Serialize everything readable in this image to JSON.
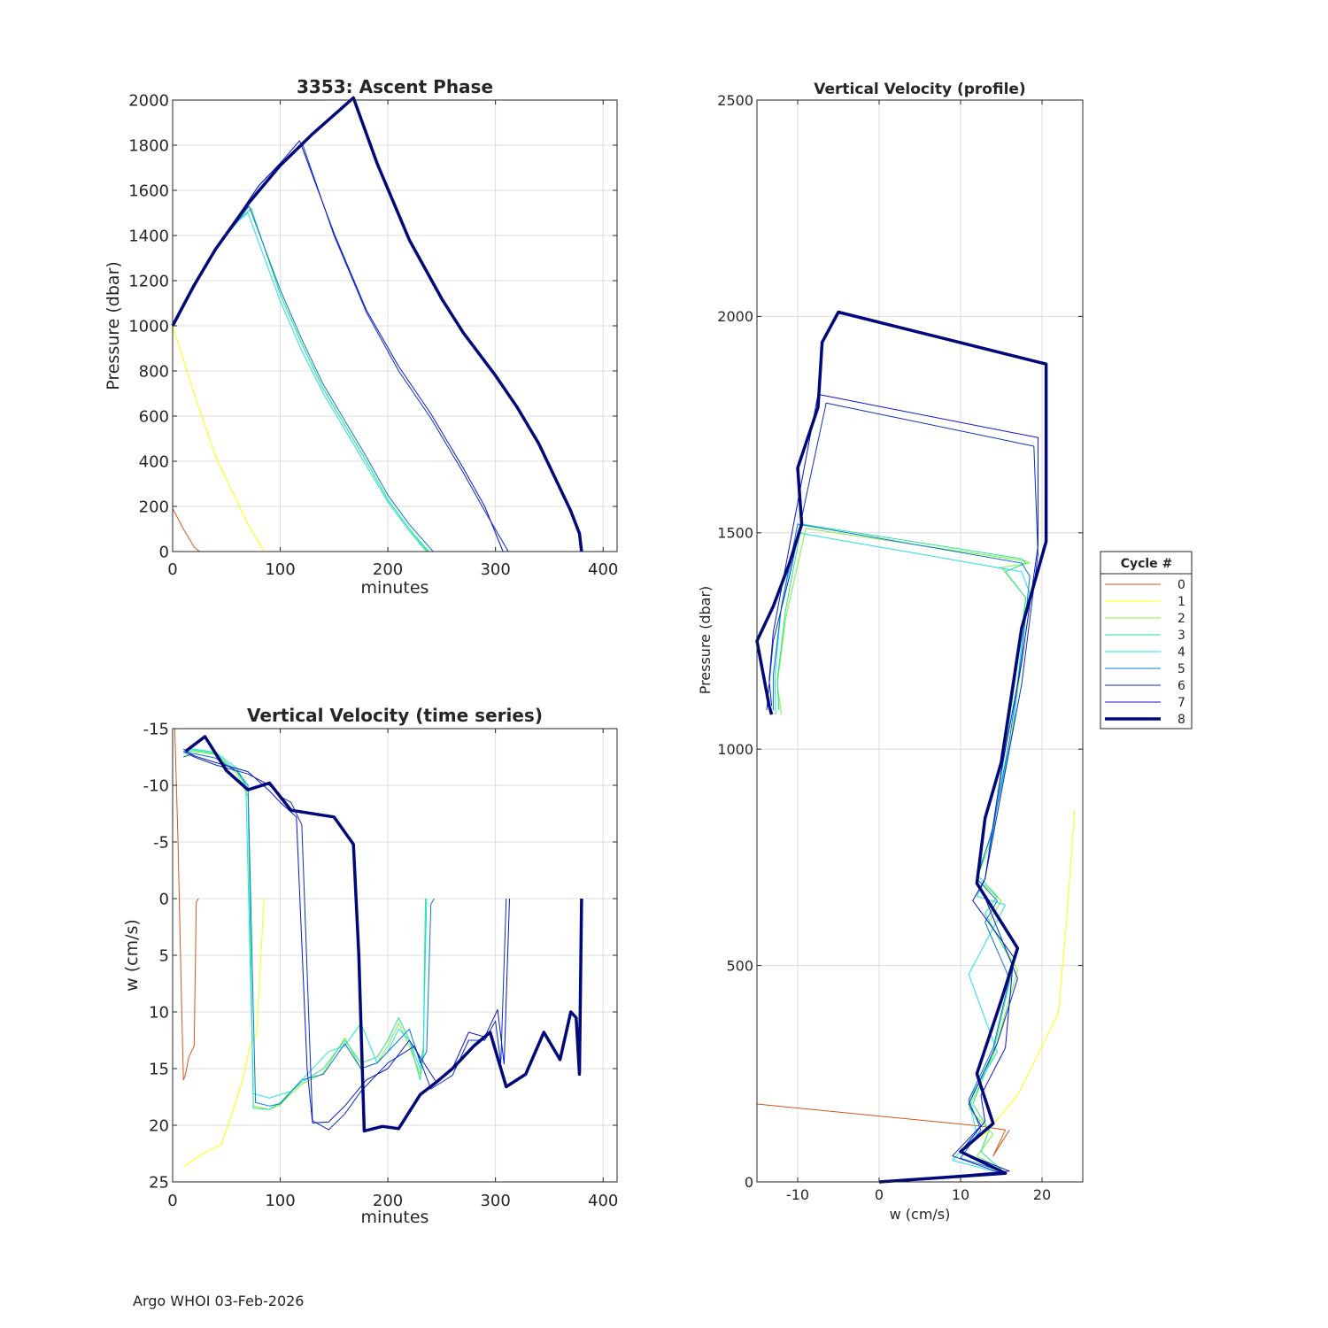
{
  "footer": "Argo WHOI 03-Feb-2026",
  "legend": {
    "title": "Cycle #",
    "entries": [
      "0",
      "1",
      "2",
      "3",
      "4",
      "5",
      "6",
      "7",
      "8"
    ],
    "colors": [
      "#d95319",
      "#ffff00",
      "#7cf03c",
      "#21e68c",
      "#1ee1e1",
      "#0b74d6",
      "#0b30b8",
      "#0a14d0",
      "#00087a"
    ]
  },
  "chart_data": [
    {
      "id": "ascent",
      "type": "line",
      "title": "3353: Ascent Phase",
      "xlabel": "minutes",
      "ylabel": "Pressure (dbar)",
      "xlim": [
        0,
        413
      ],
      "ylim": [
        2000,
        0
      ],
      "reverse_y": true,
      "grid": true,
      "xticks": [
        0,
        100,
        200,
        300,
        400
      ],
      "yticks": [
        0,
        200,
        400,
        600,
        800,
        1000,
        1200,
        1400,
        1600,
        1800,
        2000
      ],
      "series": [
        {
          "name": "0",
          "x": [
            0,
            10,
            20,
            25
          ],
          "y": [
            190,
            100,
            20,
            0
          ]
        },
        {
          "name": "1",
          "x": [
            0,
            20,
            40,
            55,
            70,
            85
          ],
          "y": [
            1000,
            700,
            420,
            270,
            120,
            0
          ]
        },
        {
          "name": "2",
          "x": [
            0,
            20,
            40,
            60,
            73,
            100,
            120,
            140,
            160,
            180,
            200,
            220,
            237
          ],
          "y": [
            1000,
            1170,
            1340,
            1460,
            1520,
            1140,
            920,
            720,
            560,
            400,
            230,
            100,
            0
          ]
        },
        {
          "name": "3",
          "x": [
            0,
            20,
            40,
            60,
            73,
            100,
            120,
            140,
            160,
            180,
            200,
            220,
            238
          ],
          "y": [
            1000,
            1170,
            1340,
            1460,
            1520,
            1140,
            920,
            720,
            560,
            400,
            230,
            100,
            0
          ]
        },
        {
          "name": "4",
          "x": [
            0,
            20,
            40,
            60,
            70,
            100,
            120,
            140,
            160,
            180,
            200,
            220,
            236
          ],
          "y": [
            1000,
            1170,
            1340,
            1460,
            1500,
            1110,
            890,
            700,
            540,
            380,
            220,
            90,
            0
          ]
        },
        {
          "name": "5",
          "x": [
            0,
            20,
            40,
            60,
            71,
            100,
            120,
            140,
            160,
            180,
            200,
            220,
            242
          ],
          "y": [
            1000,
            1170,
            1340,
            1460,
            1530,
            1160,
            940,
            740,
            580,
            420,
            250,
            120,
            0
          ]
        },
        {
          "name": "6",
          "x": [
            0,
            40,
            80,
            100,
            121,
            150,
            180,
            210,
            240,
            270,
            290,
            312
          ],
          "y": [
            1000,
            1340,
            1620,
            1720,
            1800,
            1400,
            1060,
            800,
            590,
            350,
            180,
            0
          ]
        },
        {
          "name": "7",
          "x": [
            0,
            40,
            80,
            100,
            118,
            150,
            180,
            210,
            240,
            270,
            290,
            307
          ],
          "y": [
            1000,
            1340,
            1620,
            1720,
            1820,
            1410,
            1070,
            820,
            610,
            370,
            200,
            0
          ]
        },
        {
          "name": "8",
          "x": [
            0,
            20,
            40,
            70,
            100,
            130,
            168,
            190,
            220,
            250,
            270,
            300,
            320,
            340,
            355,
            370,
            378,
            380
          ],
          "y": [
            1000,
            1180,
            1340,
            1540,
            1710,
            1850,
            2010,
            1720,
            1380,
            1120,
            970,
            780,
            640,
            480,
            330,
            180,
            80,
            0
          ]
        }
      ]
    },
    {
      "id": "timeseries",
      "type": "line",
      "title": "Vertical Velocity (time series)",
      "xlabel": "minutes",
      "ylabel": "w (cm/s)",
      "xlim": [
        0,
        413
      ],
      "ylim": [
        -15,
        25
      ],
      "grid": true,
      "xticks": [
        0,
        100,
        200,
        300,
        400
      ],
      "yticks": [
        -15,
        -10,
        -5,
        0,
        5,
        10,
        15,
        20,
        25
      ],
      "series": [
        {
          "name": "0",
          "x": [
            2,
            5,
            8,
            10,
            12,
            15,
            20,
            22,
            24
          ],
          "y": [
            -15,
            -5,
            8,
            16,
            15.5,
            14,
            13,
            0.3,
            0
          ]
        },
        {
          "name": "1",
          "x": [
            10,
            20,
            30,
            45,
            55,
            65,
            72,
            78,
            85
          ],
          "y": [
            23.7,
            23,
            22.4,
            21.7,
            19,
            16,
            13,
            12,
            0
          ]
        },
        {
          "name": "2",
          "x": [
            10,
            20,
            40,
            60,
            70,
            75,
            90,
            100,
            110,
            120,
            140,
            160,
            175,
            190,
            200,
            210,
            220,
            230,
            233,
            235
          ],
          "y": [
            -12.5,
            -13,
            -12.7,
            -11,
            -9,
            18.3,
            18.6,
            18.2,
            17.2,
            16.4,
            15.4,
            12.3,
            15,
            14.5,
            13,
            11,
            13,
            15.5,
            14,
            0
          ]
        },
        {
          "name": "3",
          "x": [
            10,
            20,
            40,
            60,
            70,
            75,
            90,
            100,
            110,
            120,
            140,
            160,
            175,
            190,
            200,
            210,
            220,
            230,
            233,
            235
          ],
          "y": [
            -12.8,
            -13.1,
            -12.8,
            -11.2,
            -9.5,
            18.5,
            18.6,
            18,
            17,
            16.2,
            15,
            12.5,
            14.5,
            14,
            12.5,
            10.5,
            12.5,
            16,
            13.5,
            0
          ]
        },
        {
          "name": "4",
          "x": [
            10,
            20,
            40,
            60,
            68,
            75,
            90,
            100,
            110,
            120,
            145,
            160,
            175,
            190,
            200,
            210,
            220,
            230,
            233,
            236
          ],
          "y": [
            -13,
            -13.2,
            -12.9,
            -11.5,
            -10,
            17.2,
            17.6,
            17.3,
            17,
            16,
            13.5,
            13,
            11,
            14.5,
            13.5,
            11.5,
            12.5,
            15,
            13,
            0
          ]
        },
        {
          "name": "5",
          "x": [
            10,
            20,
            40,
            60,
            70,
            77,
            90,
            100,
            120,
            140,
            160,
            175,
            190,
            210,
            220,
            230,
            236,
            240,
            243
          ],
          "y": [
            -12.5,
            -12.8,
            -12.4,
            -11.2,
            -10,
            18,
            18.3,
            18.1,
            16,
            15.5,
            12.8,
            15,
            14.5,
            12.5,
            11.5,
            14.5,
            13.5,
            0.5,
            0
          ]
        },
        {
          "name": "6",
          "x": [
            10,
            20,
            40,
            70,
            90,
            100,
            110,
            120,
            130,
            145,
            160,
            175,
            200,
            225,
            240,
            260,
            275,
            290,
            300,
            305,
            310
          ],
          "y": [
            -13,
            -12.5,
            -11.8,
            -11,
            -10,
            -9,
            -8.5,
            -6.5,
            19.6,
            20.4,
            19,
            17,
            14.5,
            13,
            16.8,
            15.6,
            12.5,
            12.5,
            10.8,
            14.5,
            0
          ]
        },
        {
          "name": "7",
          "x": [
            10,
            20,
            40,
            70,
            90,
            100,
            115,
            125,
            130,
            145,
            160,
            180,
            200,
            220,
            245,
            260,
            275,
            290,
            302,
            308,
            313
          ],
          "y": [
            -13.2,
            -12.6,
            -12,
            -11.2,
            -9.5,
            -8.5,
            -7.2,
            15,
            19.8,
            19.7,
            18.3,
            16,
            15,
            12.5,
            16.2,
            15,
            11.8,
            12.2,
            9.8,
            14.6,
            0
          ]
        },
        {
          "name": "8",
          "x": [
            12,
            30,
            50,
            70,
            90,
            110,
            150,
            168,
            173,
            178,
            195,
            210,
            230,
            245,
            260,
            280,
            295,
            310,
            328,
            345,
            360,
            370,
            375,
            378,
            380
          ],
          "y": [
            -13,
            -14.3,
            -11.3,
            -9.6,
            -10.2,
            -7.8,
            -7.2,
            -4.8,
            5,
            20.5,
            20.1,
            20.3,
            17.3,
            16.2,
            15,
            13,
            11.8,
            16.6,
            15.5,
            11.8,
            14.2,
            10,
            10.5,
            15.5,
            0
          ]
        }
      ]
    },
    {
      "id": "profile",
      "type": "line",
      "title": "Vertical Velocity (profile)",
      "xlabel": "w (cm/s)",
      "ylabel": "Pressure (dbar)",
      "xlim": [
        -15,
        25
      ],
      "ylim": [
        2500,
        0
      ],
      "reverse_y": true,
      "grid": true,
      "xticks": [
        -10,
        0,
        10,
        20
      ],
      "yticks": [
        0,
        500,
        1000,
        1500,
        2000,
        2500
      ],
      "series": [
        {
          "name": "0",
          "x": [
            -15,
            12,
            15.5,
            14,
            16
          ],
          "y": [
            180,
            130,
            120,
            60,
            120
          ]
        },
        {
          "name": "1",
          "x": [
            12.5,
            17,
            22,
            23,
            24
          ],
          "y": [
            100,
            200,
            390,
            600,
            860
          ]
        },
        {
          "name": "2",
          "x": [
            15,
            12,
            14,
            11,
            14,
            17,
            13.5,
            15,
            12,
            14,
            16,
            17.5,
            18,
            15,
            18.5,
            18,
            -9,
            -11.5,
            -12.5,
            -12
          ],
          "y": [
            30,
            60,
            110,
            170,
            290,
            490,
            600,
            650,
            700,
            800,
            1000,
            1200,
            1350,
            1420,
            1430,
            1435,
            1510,
            1300,
            1150,
            1080
          ]
        },
        {
          "name": "3",
          "x": [
            15.5,
            12.5,
            13.5,
            11.5,
            14,
            16.5,
            13,
            14.5,
            12,
            14,
            15.5,
            17,
            18,
            15.5,
            18,
            17.5,
            -9.5,
            -11.5,
            -12.5,
            -12.3
          ],
          "y": [
            20,
            70,
            120,
            180,
            300,
            500,
            620,
            660,
            710,
            810,
            1000,
            1200,
            1350,
            1410,
            1430,
            1440,
            1520,
            1320,
            1160,
            1090
          ]
        },
        {
          "name": "4",
          "x": [
            14,
            9,
            12,
            11,
            14.5,
            11,
            15.5,
            12,
            13,
            14.5,
            16.5,
            17.5,
            18.5,
            17.5,
            -10,
            -12,
            -12.8,
            -12.7
          ],
          "y": [
            25,
            50,
            110,
            190,
            300,
            480,
            640,
            660,
            700,
            870,
            1050,
            1250,
            1360,
            1410,
            1500,
            1330,
            1170,
            1080
          ]
        },
        {
          "name": "5",
          "x": [
            15,
            10,
            12.5,
            11,
            14,
            16,
            13,
            14.5,
            12,
            14,
            16,
            17.5,
            18.5,
            17.5,
            -10,
            -12,
            -13,
            -13
          ],
          "y": [
            25,
            55,
            120,
            190,
            310,
            470,
            600,
            650,
            700,
            820,
            1020,
            1220,
            1400,
            1430,
            1520,
            1330,
            1170,
            1090
          ]
        },
        {
          "name": "6",
          "x": [
            0,
            15,
            9,
            12.5,
            11,
            14.5,
            17,
            12.5,
            13,
            15,
            17.5,
            19.5,
            19,
            -6.5,
            -9,
            -11,
            -13,
            -13.5,
            -13.8
          ],
          "y": [
            0,
            20,
            60,
            130,
            180,
            320,
            470,
            680,
            700,
            900,
            1150,
            1450,
            1700,
            1800,
            1580,
            1400,
            1250,
            1150,
            1090
          ]
        },
        {
          "name": "7",
          "x": [
            0,
            16,
            10,
            13,
            12.5,
            15.5,
            16.5,
            11.5,
            13,
            15,
            17.5,
            19.5,
            19.5,
            -7.5,
            -9.5,
            -11.5,
            -13,
            -13.5,
            -13.2
          ],
          "y": [
            0,
            25,
            70,
            140,
            200,
            310,
            520,
            650,
            700,
            950,
            1200,
            1470,
            1720,
            1820,
            1620,
            1420,
            1270,
            1160,
            1100
          ]
        },
        {
          "name": "8",
          "x": [
            0,
            15.5,
            10,
            14,
            12,
            15,
            17,
            12,
            13,
            15,
            17.5,
            20.5,
            20.5,
            -5,
            -7,
            -7.5,
            -10,
            -9.5,
            -11,
            -13,
            -15,
            -13.5,
            -13.2
          ],
          "y": [
            0,
            20,
            70,
            135,
            250,
            420,
            540,
            690,
            840,
            970,
            1280,
            1480,
            1890,
            2010,
            1940,
            1790,
            1650,
            1520,
            1430,
            1330,
            1250,
            1100,
            1080
          ]
        }
      ]
    }
  ]
}
